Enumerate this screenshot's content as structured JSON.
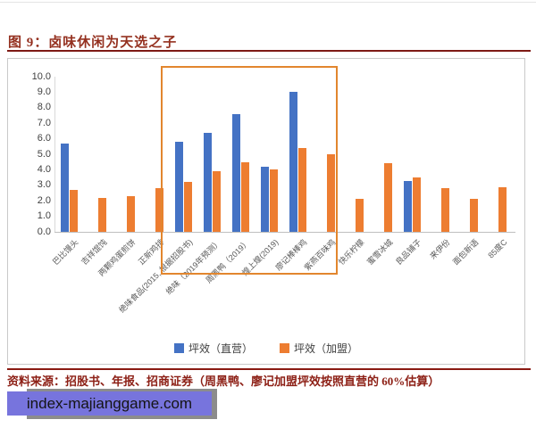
{
  "title": "图 9：卤味休闲为天选之子",
  "chart_data": {
    "type": "bar",
    "title": "图 9：卤味休闲为天选之子",
    "categories": [
      "巴比馒头",
      "吉祥馄饨",
      "两颗鸡蛋煎饼",
      "正新鸡排",
      "绝味食品(2015, 根据招股书)",
      "绝味（2019年预测）",
      "周黑鸭（2019）",
      "煌上煌(2019)",
      "廖记棒棒鸡",
      "紫燕百味鸡",
      "快乐柠檬",
      "蜜雪冰城",
      "良品铺子",
      "来伊份",
      "面包新语",
      "85度C"
    ],
    "series": [
      {
        "name": "坪效（直营）",
        "color": "#4472C4",
        "values": [
          5.7,
          null,
          null,
          null,
          5.8,
          6.4,
          7.6,
          4.2,
          9.0,
          null,
          null,
          null,
          3.3,
          null,
          null,
          null
        ]
      },
      {
        "name": "坪效（加盟）",
        "color": "#ED7D31",
        "values": [
          2.7,
          2.2,
          2.3,
          2.8,
          3.2,
          3.9,
          4.5,
          4.0,
          5.4,
          5.0,
          2.1,
          4.4,
          3.5,
          2.8,
          2.1,
          2.9
        ]
      }
    ],
    "ylim": [
      0,
      10
    ],
    "ytick_labels": [
      "10.0",
      "9.0",
      "8.0",
      "7.0",
      "6.0",
      "5.0",
      "4.0",
      "3.0",
      "2.0",
      "1.0",
      "0.0"
    ],
    "grid": false,
    "legend_position": "bottom",
    "highlight": {
      "from_index": 4,
      "to_index": 9,
      "border_color": "#E2862E"
    }
  },
  "footer": {
    "source": "资料来源：招股书、年报、招商证券（周黑鸭、廖记加盟坪效按照直营的 60%估算）"
  },
  "watermark": {
    "text": "index-majianggame.com",
    "bg_color": "#7774DD",
    "shadow_color": "#8C8C8C"
  },
  "colors": {
    "direct_blue": "#4472C4",
    "franchise_orange": "#ED7D31",
    "title_red": "#94301F",
    "rule_red": "#7E1A15",
    "highlight_border": "#E2862E"
  }
}
